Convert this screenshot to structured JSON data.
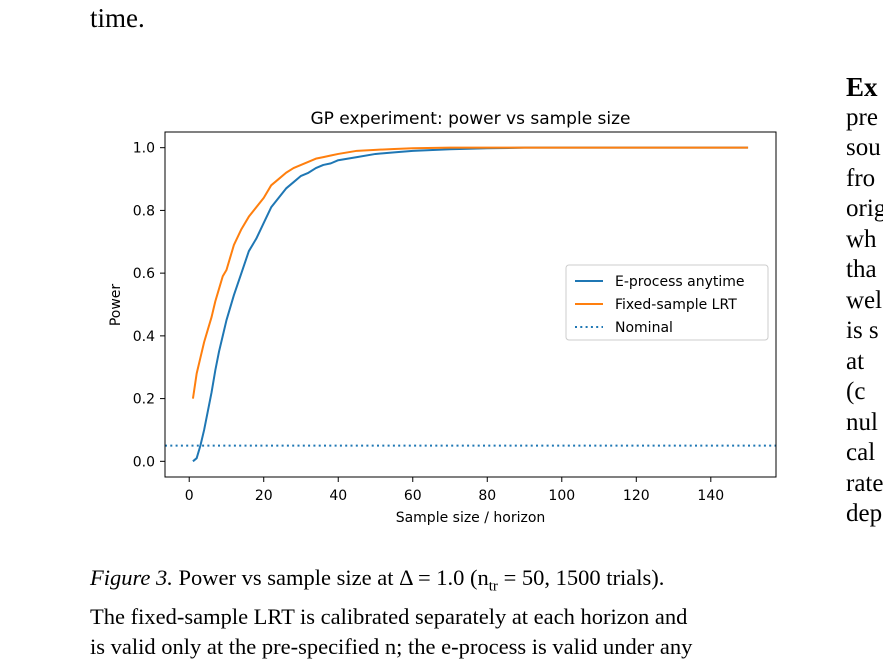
{
  "body_text": {
    "top_line": "time.",
    "right_column": [
      "Ex",
      "pre",
      "sou",
      "fro",
      "orig",
      "wh",
      "tha",
      "wel",
      "is s",
      "at",
      "(c",
      "nul",
      "cal",
      "rate",
      "dep"
    ]
  },
  "caption": {
    "label": "Figure 3.",
    "line1": "Power vs sample size at Δ = 1.0 (n",
    "line1_sub": "tr",
    "line1_end": " = 50, 1500 trials).",
    "line2": "The fixed-sample LRT is calibrated separately at each horizon and",
    "line3": "is valid only at the pre-specified n; the e-process is valid under any"
  },
  "colors": {
    "e_process": "#1f77b4",
    "lrt": "#ff7f0e",
    "nominal": "#1f77b4"
  },
  "chart_data": {
    "type": "line",
    "title": "GP experiment: power vs sample size",
    "xlabel": "Sample size / horizon",
    "ylabel": "Power",
    "xlim": [
      -6.5,
      157.5
    ],
    "ylim": [
      -0.05,
      1.05
    ],
    "xticks": [
      0,
      20,
      40,
      60,
      80,
      100,
      120,
      140
    ],
    "yticks": [
      0.0,
      0.2,
      0.4,
      0.6,
      0.8,
      1.0
    ],
    "grid": false,
    "legend_position": "center-right",
    "series": [
      {
        "name": "E-process anytime",
        "style": "solid",
        "x": [
          1,
          2,
          3,
          4,
          5,
          6,
          7,
          8,
          9,
          10,
          12,
          14,
          16,
          18,
          20,
          22,
          24,
          26,
          28,
          30,
          32,
          34,
          36,
          38,
          40,
          45,
          50,
          55,
          60,
          70,
          80,
          90,
          100,
          110,
          120,
          130,
          140,
          150
        ],
        "y": [
          0.0,
          0.01,
          0.05,
          0.1,
          0.16,
          0.22,
          0.29,
          0.35,
          0.4,
          0.45,
          0.53,
          0.6,
          0.67,
          0.71,
          0.76,
          0.81,
          0.84,
          0.87,
          0.89,
          0.91,
          0.92,
          0.935,
          0.945,
          0.95,
          0.96,
          0.97,
          0.98,
          0.985,
          0.99,
          0.995,
          0.998,
          1.0,
          1.0,
          1.0,
          1.0,
          1.0,
          1.0,
          1.0
        ]
      },
      {
        "name": "Fixed-sample LRT",
        "style": "solid",
        "x": [
          1,
          2,
          3,
          4,
          5,
          6,
          7,
          8,
          9,
          10,
          11,
          12,
          14,
          16,
          18,
          20,
          22,
          24,
          26,
          28,
          30,
          32,
          34,
          36,
          38,
          40,
          45,
          50,
          55,
          60,
          70,
          80,
          90,
          100,
          110,
          120,
          130,
          140,
          150
        ],
        "y": [
          0.2,
          0.28,
          0.33,
          0.38,
          0.42,
          0.46,
          0.51,
          0.55,
          0.59,
          0.61,
          0.65,
          0.69,
          0.74,
          0.78,
          0.81,
          0.84,
          0.88,
          0.9,
          0.92,
          0.935,
          0.945,
          0.955,
          0.965,
          0.97,
          0.975,
          0.98,
          0.99,
          0.993,
          0.996,
          0.998,
          1.0,
          1.0,
          1.0,
          1.0,
          1.0,
          1.0,
          1.0,
          1.0,
          1.0
        ]
      },
      {
        "name": "Nominal",
        "style": "dotted",
        "x": [
          -6.5,
          157.5
        ],
        "y": [
          0.05,
          0.05
        ]
      }
    ]
  }
}
